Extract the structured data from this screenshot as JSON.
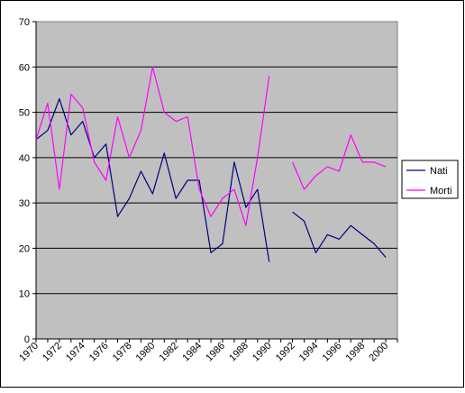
{
  "chart_data": {
    "type": "line",
    "title": "",
    "xlabel": "",
    "ylabel": "",
    "xlim": [
      1970,
      2001
    ],
    "ylim": [
      0,
      70
    ],
    "yticks": [
      0,
      10,
      20,
      30,
      40,
      50,
      60,
      70
    ],
    "xticks": [
      1970,
      1972,
      1974,
      1976,
      1978,
      1980,
      1982,
      1984,
      1986,
      1988,
      1990,
      1992,
      1994,
      1996,
      1998,
      2000
    ],
    "grid": "horizontal",
    "background": "#c0c0c0",
    "legend_position": "right",
    "series": [
      {
        "name": "Nati",
        "color": "#000080",
        "x": [
          1970,
          1971,
          1972,
          1973,
          1974,
          1975,
          1976,
          1977,
          1978,
          1979,
          1980,
          1981,
          1982,
          1983,
          1984,
          1985,
          1986,
          1987,
          1988,
          1989,
          1990,
          1991,
          1992,
          1993,
          1994,
          1995,
          1996,
          1997,
          1998,
          1999,
          2000
        ],
        "values": [
          44,
          46,
          53,
          45,
          48,
          40,
          43,
          27,
          31,
          37,
          32,
          41,
          31,
          35,
          35,
          19,
          21,
          39,
          29,
          33,
          17,
          null,
          28,
          26,
          19,
          23,
          22,
          25,
          23,
          21,
          18
        ]
      },
      {
        "name": "Morti",
        "color": "#ff00ff",
        "x": [
          1970,
          1971,
          1972,
          1973,
          1974,
          1975,
          1976,
          1977,
          1978,
          1979,
          1980,
          1981,
          1982,
          1983,
          1984,
          1985,
          1986,
          1987,
          1988,
          1989,
          1990,
          1991,
          1992,
          1993,
          1994,
          1995,
          1996,
          1997,
          1998,
          1999,
          2000
        ],
        "values": [
          44,
          52,
          33,
          54,
          51,
          39,
          35,
          49,
          40,
          46,
          60,
          50,
          48,
          49,
          33,
          27,
          31,
          33,
          25,
          40,
          58,
          null,
          39,
          33,
          36,
          38,
          37,
          45,
          39,
          39,
          38
        ]
      }
    ]
  }
}
